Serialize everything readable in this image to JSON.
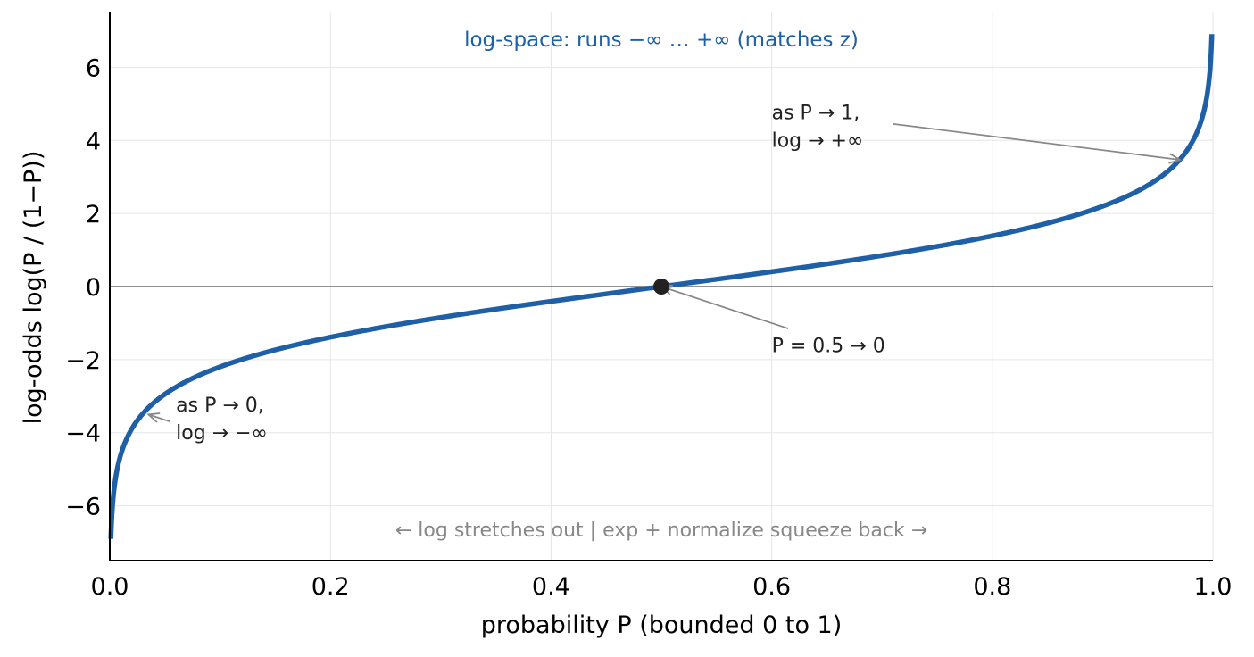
{
  "chart_data": {
    "type": "line",
    "xlabel": "probability  P   (bounded 0 to 1)",
    "ylabel": "log-odds  log(P / (1−P))",
    "xlim": [
      0.0,
      1.0
    ],
    "ylim": [
      -7.5,
      7.5
    ],
    "x_ticks": [
      0.0,
      0.2,
      0.4,
      0.6,
      0.8,
      1.0
    ],
    "x_tick_labels": [
      "0.0",
      "0.2",
      "0.4",
      "0.6",
      "0.8",
      "1.0"
    ],
    "y_ticks": [
      -6,
      -4,
      -2,
      0,
      2,
      4,
      6
    ],
    "y_tick_labels": [
      "−6",
      "−4",
      "−2",
      "0",
      "2",
      "4",
      "6"
    ],
    "grid": true,
    "series": [
      {
        "function": "log(P / (1-P))",
        "x_range": [
          0.001,
          0.999
        ],
        "color": "#1f5fa6",
        "sample_points": [
          {
            "x": 0.001,
            "y": -6.91
          },
          {
            "x": 0.01,
            "y": -4.6
          },
          {
            "x": 0.05,
            "y": -2.94
          },
          {
            "x": 0.1,
            "y": -2.2
          },
          {
            "x": 0.2,
            "y": -1.39
          },
          {
            "x": 0.3,
            "y": -0.85
          },
          {
            "x": 0.4,
            "y": -0.41
          },
          {
            "x": 0.5,
            "y": 0.0
          },
          {
            "x": 0.6,
            "y": 0.41
          },
          {
            "x": 0.7,
            "y": 0.85
          },
          {
            "x": 0.8,
            "y": 1.39
          },
          {
            "x": 0.9,
            "y": 2.2
          },
          {
            "x": 0.95,
            "y": 2.94
          },
          {
            "x": 0.99,
            "y": 4.6
          },
          {
            "x": 0.999,
            "y": 6.91
          }
        ]
      }
    ],
    "reference_line": {
      "y": 0,
      "color": "#808080"
    },
    "marker": {
      "x": 0.5,
      "y": 0,
      "color": "#222222"
    },
    "annotations": [
      {
        "lines": [
          "as P → 1,",
          "log → +∞"
        ],
        "text_at": [
          0.6,
          4.4
        ],
        "arrow_from": [
          0.71,
          4.45
        ],
        "arrow_to": [
          0.97,
          3.47
        ]
      },
      {
        "lines": [
          "P = 0.5 → 0"
        ],
        "text_at": [
          0.6,
          -1.6
        ],
        "arrow_from": [
          0.615,
          -1.15
        ],
        "arrow_to": [
          0.5,
          0.0
        ]
      },
      {
        "lines": [
          "as P → 0,",
          "log → −∞"
        ],
        "text_at": [
          0.06,
          -3.6
        ],
        "arrow_from": [
          0.055,
          -3.7
        ],
        "arrow_to": [
          0.035,
          -3.5
        ]
      }
    ],
    "top_note": "log-space:  runs −∞ … +∞   (matches z)",
    "top_note_color": "#1f5fa6",
    "bottom_note": "← log stretches out     |     exp + normalize squeeze back →"
  }
}
